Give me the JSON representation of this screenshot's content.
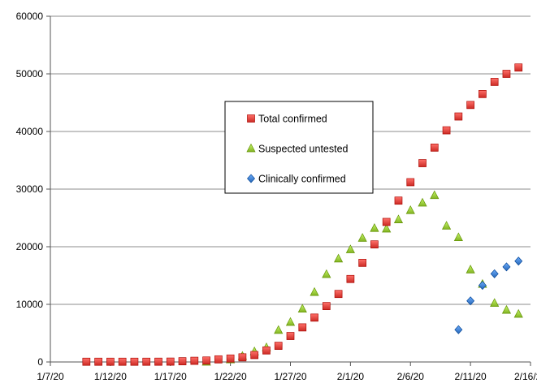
{
  "chart_data": {
    "type": "scatter",
    "title": "",
    "xlabel": "",
    "ylabel": "",
    "xlim": [
      "1/7/20",
      "2/16/20"
    ],
    "ylim": [
      0,
      60000
    ],
    "grid": true,
    "legend_position": "center",
    "x_tick_labels": [
      "1/7/20",
      "1/12/20",
      "1/17/20",
      "1/22/20",
      "1/27/20",
      "2/1/20",
      "2/6/20",
      "2/11/20",
      "2/16/20"
    ],
    "y_tick_labels": [
      "0",
      "10000",
      "20000",
      "30000",
      "40000",
      "50000",
      "60000"
    ],
    "series": [
      {
        "name": "Total confirmed",
        "color": "#e4433d",
        "marker": "square",
        "x": [
          "1/10/20",
          "1/11/20",
          "1/12/20",
          "1/13/20",
          "1/14/20",
          "1/15/20",
          "1/16/20",
          "1/17/20",
          "1/18/20",
          "1/19/20",
          "1/20/20",
          "1/21/20",
          "1/22/20",
          "1/23/20",
          "1/24/20",
          "1/25/20",
          "1/26/20",
          "1/27/20",
          "1/28/20",
          "1/29/20",
          "1/30/20",
          "1/31/20",
          "2/1/20",
          "2/2/20",
          "2/3/20",
          "2/4/20",
          "2/5/20",
          "2/6/20",
          "2/7/20",
          "2/8/20",
          "2/9/20",
          "2/10/20",
          "2/11/20",
          "2/12/20",
          "2/13/20",
          "2/14/20",
          "2/15/20"
        ],
        "values": [
          40,
          40,
          40,
          40,
          40,
          40,
          45,
          60,
          120,
          200,
          250,
          450,
          600,
          800,
          1200,
          2000,
          2800,
          4500,
          6000,
          7700,
          9700,
          11800,
          14400,
          17200,
          20400,
          24300,
          28000,
          31200,
          34500,
          37200,
          40200,
          42600,
          44600,
          46500,
          48600,
          50000,
          51100
        ]
      },
      {
        "name": "Suspected untested",
        "color": "#9acb3b",
        "marker": "triangle",
        "x": [
          "1/20/20",
          "1/22/20",
          "1/23/20",
          "1/24/20",
          "1/25/20",
          "1/26/20",
          "1/27/20",
          "1/28/20",
          "1/29/20",
          "1/30/20",
          "1/31/20",
          "2/1/20",
          "2/2/20",
          "2/3/20",
          "2/4/20",
          "2/5/20",
          "2/6/20",
          "2/7/20",
          "2/8/20",
          "2/9/20",
          "2/10/20",
          "2/11/20",
          "2/12/20",
          "2/13/20",
          "2/14/20",
          "2/15/20"
        ],
        "values": [
          0,
          400,
          1000,
          1800,
          2500,
          5500,
          6900,
          9200,
          12100,
          15200,
          17900,
          19500,
          21500,
          23200,
          23100,
          24700,
          26300,
          27600,
          28900,
          23600,
          21600,
          16000,
          13500,
          10200,
          9000,
          8300
        ]
      },
      {
        "name": "Clinically confirmed",
        "color": "#3f7fcf",
        "marker": "diamond",
        "x": [
          "2/10/20",
          "2/11/20",
          "2/12/20",
          "2/13/20",
          "2/14/20",
          "2/15/20"
        ],
        "values": [
          5600,
          10600,
          13300,
          15300,
          16500,
          17500
        ]
      }
    ]
  }
}
